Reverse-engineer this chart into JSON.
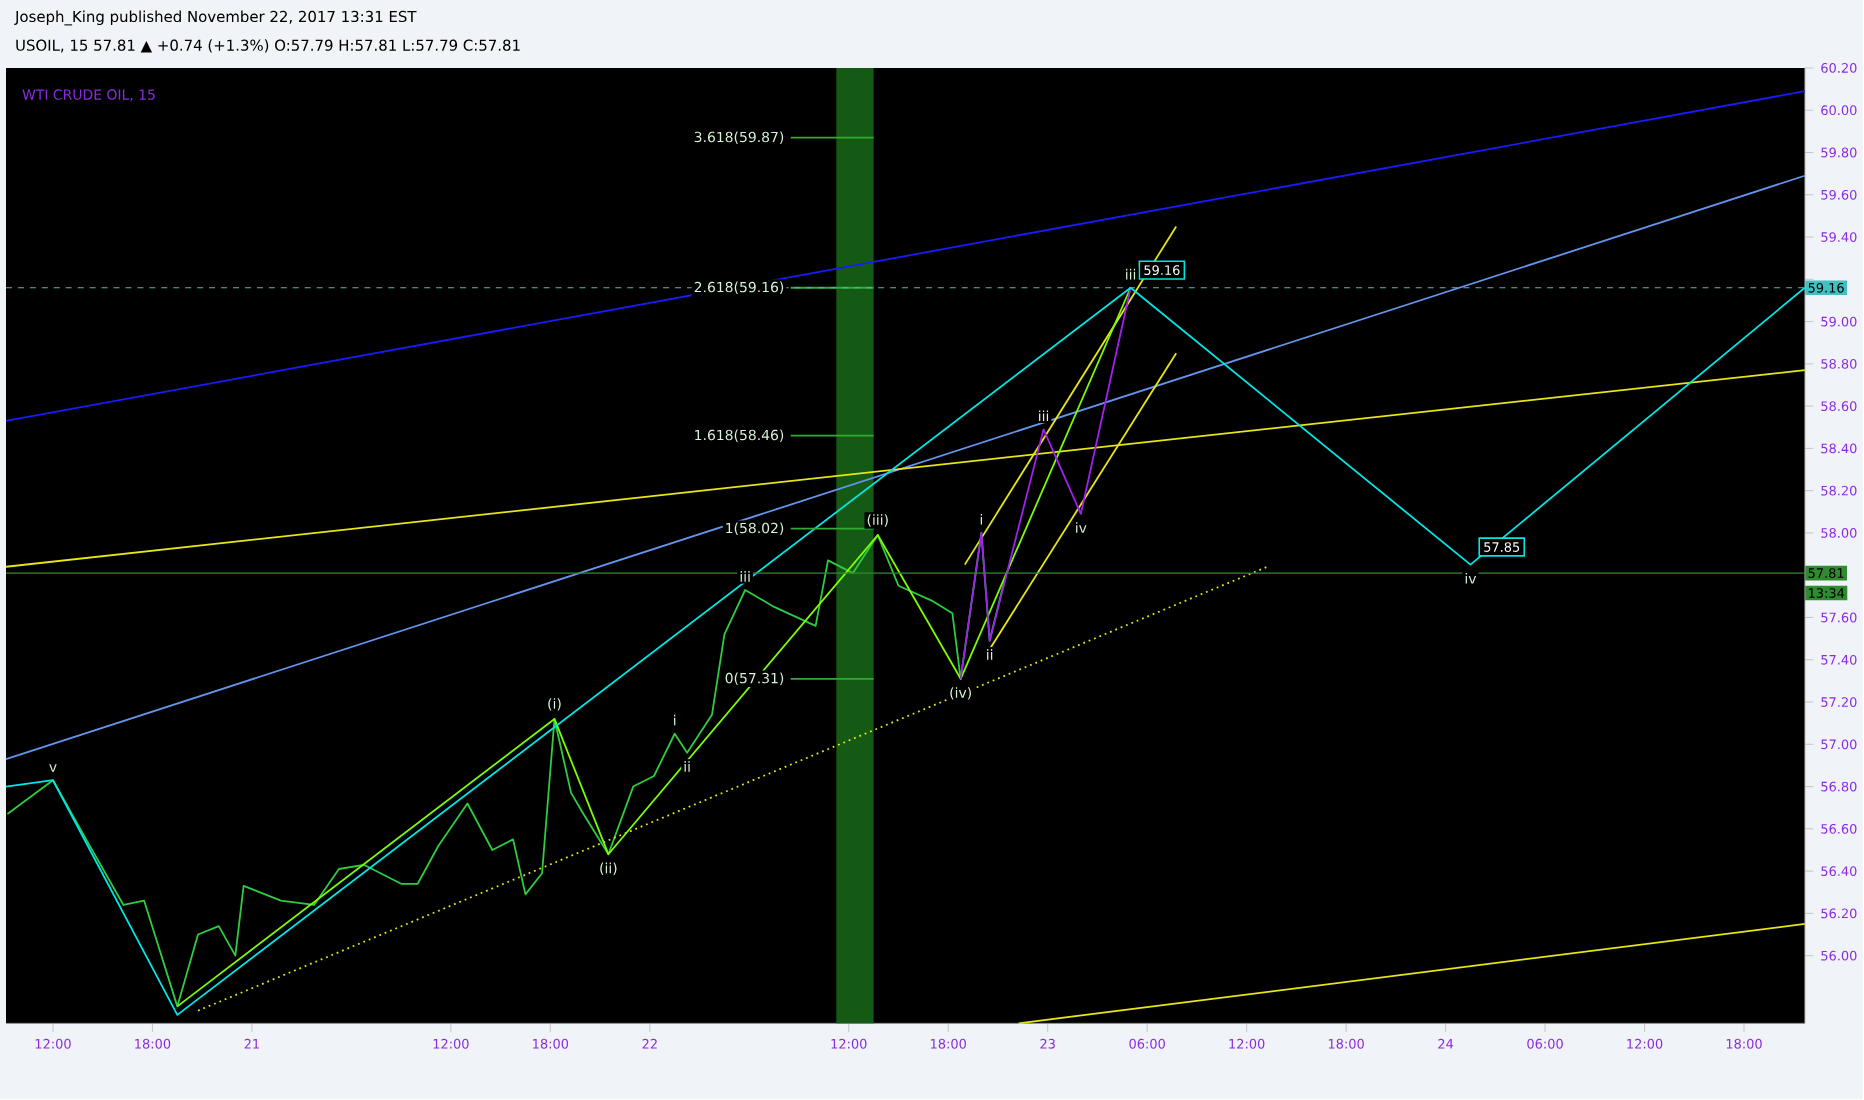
{
  "chart_data": {
    "type": "line",
    "title": "Joseph_King published November 22, 2017 13:31 EST",
    "subtitle": "USOIL, 15 57.81 ▲ +0.74 (+1.3%) O:57.79 H:57.81 L:57.79 C:57.81",
    "xlim": [
      "2017-11-20T09:10",
      "2017-11-24T21:40"
    ],
    "ylim": [
      55.68,
      60.2
    ],
    "xticks": [
      {
        "value": "2017-11-20T12:00",
        "label": "12:00"
      },
      {
        "value": "2017-11-20T18:00",
        "label": "18:00"
      },
      {
        "value": "2017-11-21T00:00",
        "label": "21"
      },
      {
        "value": "2017-11-21T12:00",
        "label": "12:00"
      },
      {
        "value": "2017-11-21T18:00",
        "label": "18:00"
      },
      {
        "value": "2017-11-22T00:00",
        "label": "22"
      },
      {
        "value": "2017-11-22T12:00",
        "label": "12:00"
      },
      {
        "value": "2017-11-22T18:00",
        "label": "18:00"
      },
      {
        "value": "2017-11-23T00:00",
        "label": "23"
      },
      {
        "value": "2017-11-23T06:00",
        "label": "06:00"
      },
      {
        "value": "2017-11-23T12:00",
        "label": "12:00"
      },
      {
        "value": "2017-11-23T18:00",
        "label": "18:00"
      },
      {
        "value": "2017-11-24T00:00",
        "label": "24"
      },
      {
        "value": "2017-11-24T06:00",
        "label": "06:00"
      },
      {
        "value": "2017-11-24T12:00",
        "label": "12:00"
      },
      {
        "value": "2017-11-24T18:00",
        "label": "18:00"
      }
    ],
    "yticks": [
      {
        "value": 56,
        "label": "56.00"
      },
      {
        "value": 56.2,
        "label": "56.20"
      },
      {
        "value": 56.4,
        "label": "56.40"
      },
      {
        "value": 56.6,
        "label": "56.60"
      },
      {
        "value": 56.8,
        "label": "56.80"
      },
      {
        "value": 57,
        "label": "57.00"
      },
      {
        "value": 57.2,
        "label": "57.20"
      },
      {
        "value": 57.4,
        "label": "57.40"
      },
      {
        "value": 57.6,
        "label": "57.60"
      },
      {
        "value": 57.8,
        "label": null
      },
      {
        "value": 58,
        "label": "58.00"
      },
      {
        "value": 58.2,
        "label": "58.20"
      },
      {
        "value": 58.4,
        "label": "58.40"
      },
      {
        "value": 58.6,
        "label": "58.60"
      },
      {
        "value": 58.8,
        "label": "58.80"
      },
      {
        "value": 59,
        "label": "59.00"
      },
      {
        "value": 59.2,
        "label": null
      },
      {
        "value": 59.4,
        "label": "59.40"
      },
      {
        "value": 59.6,
        "label": "59.60"
      },
      {
        "value": 59.8,
        "label": "59.80"
      },
      {
        "value": 60,
        "label": "60.00"
      },
      {
        "value": 60.2,
        "label": "60.20"
      }
    ],
    "series": [
      {
        "color": "#2ecc40",
        "x": [
          "2017-11-20T09:15",
          "2017-11-20T12:00",
          "2017-11-20T14:00",
          "2017-11-20T16:15",
          "2017-11-20T17:30",
          "2017-11-20T19:30",
          "2017-11-20T20:45",
          "2017-11-20T22:00",
          "2017-11-20T23:00",
          "2017-11-20T23:30",
          "2017-11-21T01:45",
          "2017-11-21T03:45",
          "2017-11-21T05:15",
          "2017-11-21T06:45",
          "2017-11-21T09:00",
          "2017-11-21T10:00",
          "2017-11-21T11:15",
          "2017-11-21T13:00",
          "2017-11-21T14:30",
          "2017-11-21T15:45",
          "2017-11-21T16:30",
          "2017-11-21T17:30",
          "2017-11-21T18:15",
          "2017-11-21T19:15",
          "2017-11-21T20:00",
          "2017-11-21T21:30",
          "2017-11-21T23:00",
          "2017-11-22T00:15",
          "2017-11-22T01:30",
          "2017-11-22T02:15",
          "2017-11-22T03:45",
          "2017-11-22T04:30",
          "2017-11-22T05:45",
          "2017-11-22T07:30",
          "2017-11-22T10:00",
          "2017-11-22T10:45",
          "2017-11-22T12:15",
          "2017-11-22T13:45",
          "2017-11-22T15:00",
          "2017-11-22T17:00",
          "2017-11-22T18:15",
          "2017-11-22T18:45",
          "2017-11-22T20:00",
          "2017-11-22T20:30",
          "2017-11-22T21:30"
        ],
        "values": [
          56.67,
          56.83,
          56.55,
          56.24,
          56.26,
          55.76,
          56.1,
          56.14,
          56.0,
          56.33,
          56.26,
          56.24,
          56.41,
          56.43,
          56.34,
          56.34,
          56.52,
          56.72,
          56.5,
          56.55,
          56.29,
          56.39,
          57.12,
          56.77,
          56.67,
          56.48,
          56.8,
          56.85,
          57.05,
          56.96,
          57.14,
          57.52,
          57.73,
          57.65,
          57.56,
          57.87,
          57.81,
          57.99,
          57.75,
          57.68,
          57.62,
          57.31,
          58.0,
          57.49,
          57.81
        ]
      },
      {
        "color": "#1a1aff",
        "x": [
          "2017-11-20T09:10",
          "2017-11-24T21:40"
        ],
        "values": [
          58.53,
          60.09
        ]
      },
      {
        "color": "#6495ed",
        "x": [
          "2017-11-20T09:10",
          "2017-11-24T21:40"
        ],
        "values": [
          56.93,
          59.69
        ]
      },
      {
        "color": "#e6e619",
        "x": [
          "2017-11-20T09:10",
          "2017-11-24T21:40"
        ],
        "values": [
          57.84,
          58.77
        ]
      },
      {
        "color": "#e6e619",
        "x": [
          "2017-11-22T22:15",
          "2017-11-24T21:40"
        ],
        "values": [
          55.68,
          56.15
        ]
      },
      {
        "color": "#e6e619",
        "line_style": "dotted",
        "x": [
          "2017-11-20T20:45",
          "2017-11-23T13:15"
        ],
        "values": [
          55.74,
          57.84
        ]
      },
      {
        "color": "#e6e619",
        "x": [
          "2017-11-22T19:00",
          "2017-11-23T07:45"
        ],
        "values": [
          57.85,
          59.45
        ]
      },
      {
        "color": "#e6e619",
        "x": [
          "2017-11-22T20:30",
          "2017-11-23T07:45"
        ],
        "values": [
          57.45,
          58.85
        ]
      },
      {
        "color": "#7cfc00",
        "x": [
          "2017-11-20T19:30",
          "2017-11-21T18:15",
          "2017-11-21T21:30",
          "2017-11-22T13:45",
          "2017-11-22T18:45",
          "2017-11-23T05:00"
        ],
        "values": [
          55.76,
          57.12,
          56.48,
          57.99,
          57.31,
          59.16
        ]
      },
      {
        "color": "#a020f0",
        "x": [
          "2017-11-22T18:45",
          "2017-11-22T20:00",
          "2017-11-22T20:30",
          "2017-11-22T23:45",
          "2017-11-23T02:00",
          "2017-11-23T05:00"
        ],
        "values": [
          57.31,
          58.0,
          57.49,
          58.49,
          58.09,
          59.16
        ]
      },
      {
        "color": "#00e5e5",
        "x": [
          "2017-11-20T09:10",
          "2017-11-20T12:00",
          "2017-11-20T19:30",
          "2017-11-23T05:00",
          "2017-11-24T01:30",
          "2017-11-24T21:40"
        ],
        "values": [
          56.8,
          56.83,
          55.72,
          59.16,
          57.85,
          59.16
        ],
        "value_labels": [
          null,
          null,
          null,
          "59.16",
          "57.85",
          null
        ]
      },
      {
        "color": "#33aa33",
        "x": [
          "2017-11-22T08:30",
          "2017-11-22T13:30"
        ],
        "values": [
          59.87,
          59.87
        ]
      },
      {
        "color": "#33aa33",
        "x": [
          "2017-11-22T08:30",
          "2017-11-22T13:30"
        ],
        "values": [
          59.16,
          59.16
        ]
      },
      {
        "color": "#33aa33",
        "x": [
          "2017-11-22T08:30",
          "2017-11-22T13:30"
        ],
        "values": [
          58.46,
          58.46
        ]
      },
      {
        "color": "#33aa33",
        "x": [
          "2017-11-22T08:30",
          "2017-11-22T13:30"
        ],
        "values": [
          58.02,
          58.02
        ]
      },
      {
        "color": "#33aa33",
        "x": [
          "2017-11-22T08:30",
          "2017-11-22T13:30"
        ],
        "values": [
          57.31,
          57.31
        ]
      }
    ],
    "ref_lines": [
      {
        "axis": "y",
        "value": 57.81,
        "label": "57.81",
        "color": "#2e8b2e"
      },
      {
        "axis": "y",
        "value": 59.16,
        "label": "59.16",
        "color": "#40c0c0",
        "line_style": "dashed"
      }
    ],
    "bands": [
      {
        "axis": "x",
        "from": "2017-11-22T11:15",
        "to": "2017-11-22T13:30",
        "color": "#145a14"
      }
    ],
    "annotations": [
      "WTI CRUDE OIL, 15",
      {
        "text": "3.618(59.87)",
        "x": "2017-11-22T08:30",
        "y": 59.87
      },
      {
        "text": "2.618(59.16)",
        "x": "2017-11-22T08:30",
        "y": 59.16
      },
      {
        "text": "1.618(58.46)",
        "x": "2017-11-22T08:30",
        "y": 58.46
      },
      {
        "text": "1(58.02)",
        "x": "2017-11-22T08:30",
        "y": 58.02
      },
      {
        "text": "0(57.31)",
        "x": "2017-11-22T08:30",
        "y": 57.31
      },
      {
        "text": "v",
        "x": "2017-11-20T12:00",
        "y": 56.83
      },
      {
        "text": "(i)",
        "x": "2017-11-21T18:15",
        "y": 57.12
      },
      {
        "text": "(ii)",
        "x": "2017-11-21T21:30",
        "y": 56.48
      },
      {
        "text": "i",
        "x": "2017-11-22T01:30",
        "y": 57.05
      },
      {
        "text": "ii",
        "x": "2017-11-22T02:15",
        "y": 56.96
      },
      {
        "text": "iii",
        "x": "2017-11-22T05:45",
        "y": 57.73
      },
      {
        "text": "(iii)",
        "x": "2017-11-22T13:45",
        "y": 57.99
      },
      {
        "text": "(iv)",
        "x": "2017-11-22T18:45",
        "y": 57.31
      },
      {
        "text": "i",
        "x": "2017-11-22T20:00",
        "y": 58.0
      },
      {
        "text": "ii",
        "x": "2017-11-22T20:30",
        "y": 57.49
      },
      {
        "text": "iii",
        "x": "2017-11-22T23:45",
        "y": 58.49
      },
      {
        "text": "iv",
        "x": "2017-11-23T02:00",
        "y": 58.09
      },
      {
        "text": "iii",
        "x": "2017-11-23T05:00",
        "y": 59.16
      },
      {
        "text": "iv",
        "x": "2017-11-24T01:30",
        "y": 57.85
      },
      "13:34"
    ]
  }
}
